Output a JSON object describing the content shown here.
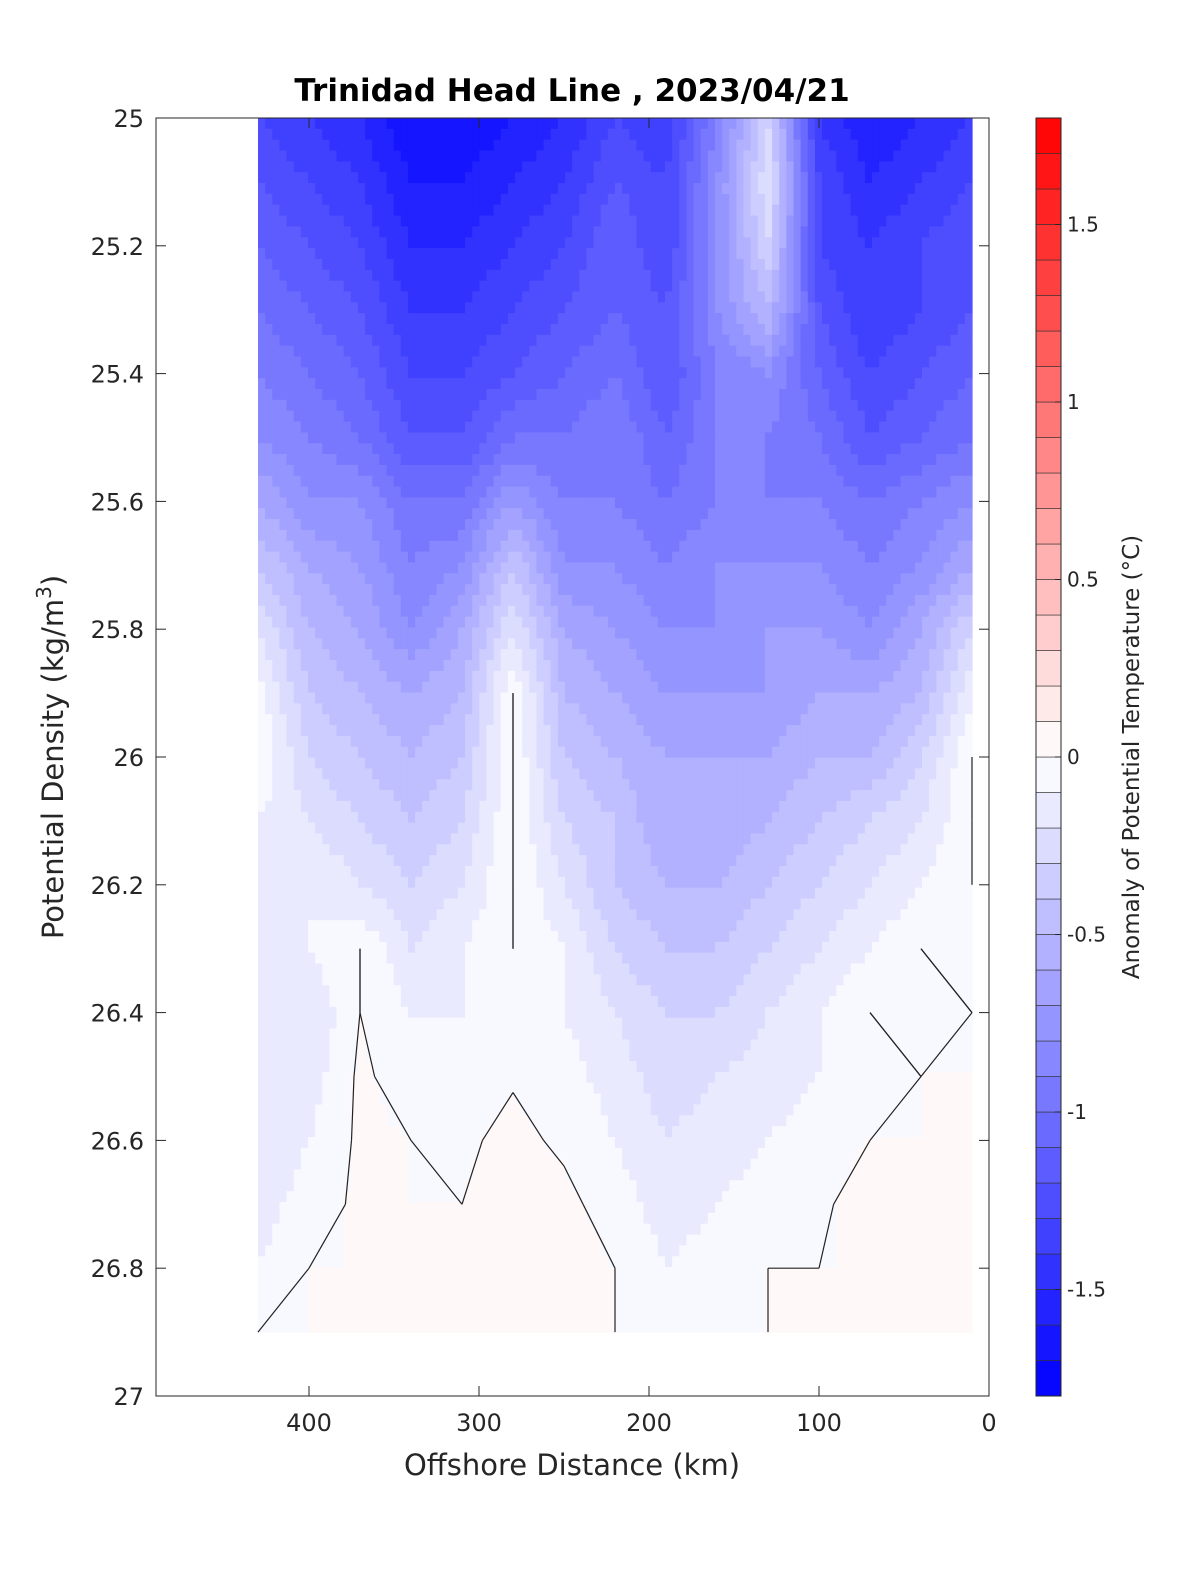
{
  "chart_data": {
    "type": "heatmap",
    "title": "Trinidad Head Line , 2023/04/21",
    "xlabel": "Offshore Distance (km)",
    "ylabel": "Potential Density (kg/m",
    "ylabel_sup": "3",
    "ylabel_end": ")",
    "colorbar_label": "Anomaly of Potential Temperature (°C)",
    "x_range": [
      490,
      0
    ],
    "x_reversed": true,
    "y_range": [
      25,
      27
    ],
    "y_reversed": true,
    "x_ticks": [
      "400",
      "300",
      "200",
      "100",
      "0"
    ],
    "x_tick_values": [
      400,
      300,
      200,
      100,
      0
    ],
    "y_ticks": [
      "25",
      "25.2",
      "25.4",
      "25.6",
      "25.8",
      "26",
      "26.2",
      "26.4",
      "26.6",
      "26.8",
      "27"
    ],
    "y_tick_values": [
      25,
      25.2,
      25.4,
      25.6,
      25.8,
      26,
      26.2,
      26.4,
      26.6,
      26.8,
      27
    ],
    "colorbar_range": [
      -1.8,
      1.8
    ],
    "colorbar_step": 0.1,
    "colorbar_ticks": [
      "-1.5",
      "-1",
      "-0.5",
      "0",
      "0.5",
      "1",
      "1.5"
    ],
    "colorbar_tick_values": [
      -1.5,
      -1,
      -0.5,
      0,
      0.5,
      1,
      1.5
    ],
    "colors": {
      "negative": "#0000ff",
      "zero": "#ffffff",
      "positive": "#ff0000"
    },
    "stations_x": [
      430,
      400,
      370,
      340,
      310,
      280,
      250,
      220,
      190,
      160,
      130,
      100,
      70,
      40,
      10
    ],
    "density_levels": [
      25.0,
      25.1,
      25.2,
      25.3,
      25.4,
      25.5,
      25.6,
      25.7,
      25.8,
      25.9,
      26.0,
      26.1,
      26.2,
      26.3,
      26.4,
      26.5,
      26.6,
      26.7,
      26.8,
      26.9
    ],
    "anomaly_grid": [
      [
        -1.3,
        -1.4,
        -1.5,
        -1.7,
        -1.7,
        -1.6,
        -1.5,
        -1.3,
        -1.4,
        -0.9,
        -0.3,
        -1.4,
        -1.6,
        -1.5,
        -1.4
      ],
      [
        -1.2,
        -1.3,
        -1.4,
        -1.6,
        -1.6,
        -1.5,
        -1.4,
        -1.2,
        -1.3,
        -0.8,
        -0.2,
        -1.3,
        -1.5,
        -1.4,
        -1.3
      ],
      [
        -1.1,
        -1.2,
        -1.3,
        -1.5,
        -1.5,
        -1.4,
        -1.3,
        -1.1,
        -1.3,
        -0.8,
        -0.3,
        -1.3,
        -1.4,
        -1.3,
        -1.2
      ],
      [
        -1.0,
        -1.1,
        -1.2,
        -1.4,
        -1.4,
        -1.3,
        -1.2,
        -1.1,
        -1.2,
        -0.8,
        -0.5,
        -1.2,
        -1.4,
        -1.3,
        -1.2
      ],
      [
        -0.9,
        -1.0,
        -1.1,
        -1.3,
        -1.3,
        -1.2,
        -1.1,
        -1.0,
        -1.2,
        -0.9,
        -0.8,
        -1.1,
        -1.3,
        -1.2,
        -1.1
      ],
      [
        -0.8,
        -0.9,
        -1.0,
        -1.2,
        -1.2,
        -1.0,
        -1.0,
        -0.9,
        -1.1,
        -0.9,
        -0.9,
        -1.0,
        -1.2,
        -1.1,
        -1.0
      ],
      [
        -0.6,
        -0.8,
        -0.8,
        -1.0,
        -1.0,
        -0.7,
        -0.9,
        -0.9,
        -1.0,
        -0.9,
        -0.9,
        -0.9,
        -1.0,
        -0.9,
        -0.8
      ],
      [
        -0.4,
        -0.6,
        -0.7,
        -0.9,
        -0.8,
        -0.4,
        -0.8,
        -0.8,
        -0.9,
        -0.8,
        -0.8,
        -0.8,
        -0.9,
        -0.8,
        -0.6
      ],
      [
        -0.2,
        -0.5,
        -0.6,
        -0.8,
        -0.6,
        -0.2,
        -0.6,
        -0.7,
        -0.8,
        -0.8,
        -0.7,
        -0.7,
        -0.8,
        -0.6,
        -0.3
      ],
      [
        -0.05,
        -0.4,
        -0.5,
        -0.6,
        -0.5,
        0.0,
        -0.5,
        -0.6,
        -0.7,
        -0.7,
        -0.7,
        -0.6,
        -0.6,
        -0.5,
        -0.1
      ],
      [
        0.0,
        -0.3,
        -0.4,
        -0.5,
        -0.4,
        0.0,
        -0.4,
        -0.5,
        -0.6,
        -0.6,
        -0.6,
        -0.5,
        -0.5,
        -0.3,
        0.0
      ],
      [
        -0.1,
        -0.2,
        -0.3,
        -0.4,
        -0.3,
        0.0,
        -0.3,
        -0.4,
        -0.6,
        -0.6,
        -0.5,
        -0.4,
        -0.3,
        -0.2,
        0.0
      ],
      [
        -0.2,
        -0.1,
        -0.2,
        -0.3,
        -0.2,
        0.0,
        -0.2,
        -0.4,
        -0.5,
        -0.5,
        -0.4,
        -0.3,
        -0.2,
        -0.1,
        0.0
      ],
      [
        -0.2,
        -0.1,
        0.0,
        -0.2,
        -0.1,
        0.0,
        -0.1,
        -0.3,
        -0.4,
        -0.4,
        -0.3,
        -0.2,
        -0.1,
        0.0,
        -0.02
      ],
      [
        -0.2,
        -0.2,
        0.0,
        -0.1,
        -0.1,
        -0.01,
        -0.1,
        -0.2,
        -0.3,
        -0.3,
        -0.2,
        -0.1,
        0.0,
        -0.05,
        0.0
      ],
      [
        -0.2,
        -0.15,
        0.02,
        -0.05,
        -0.05,
        -0.01,
        -0.05,
        -0.15,
        -0.25,
        -0.2,
        -0.15,
        -0.1,
        -0.05,
        0.0,
        0.0
      ],
      [
        -0.2,
        -0.1,
        0.02,
        0.0,
        -0.02,
        0.03,
        -0.02,
        -0.1,
        -0.2,
        -0.15,
        -0.1,
        -0.05,
        0.0,
        0.0,
        0.0
      ],
      [
        -0.15,
        -0.05,
        0.02,
        0.0,
        0.0,
        0.05,
        0.03,
        -0.05,
        -0.15,
        -0.1,
        -0.05,
        -0.02,
        0.05,
        0.0,
        0.0
      ],
      [
        -0.1,
        0.0,
        0.0,
        0.0,
        0.05,
        0.1,
        0.05,
        0.0,
        -0.1,
        -0.05,
        0.0,
        0.0,
        0.0,
        0.0,
        0.0
      ],
      [
        0.0,
        0.0,
        0.0,
        0.0,
        0.05,
        0.1,
        0.05,
        0.0,
        -0.05,
        -0.05,
        0.0,
        0.0,
        0.0,
        0.0,
        0.0
      ]
    ]
  }
}
